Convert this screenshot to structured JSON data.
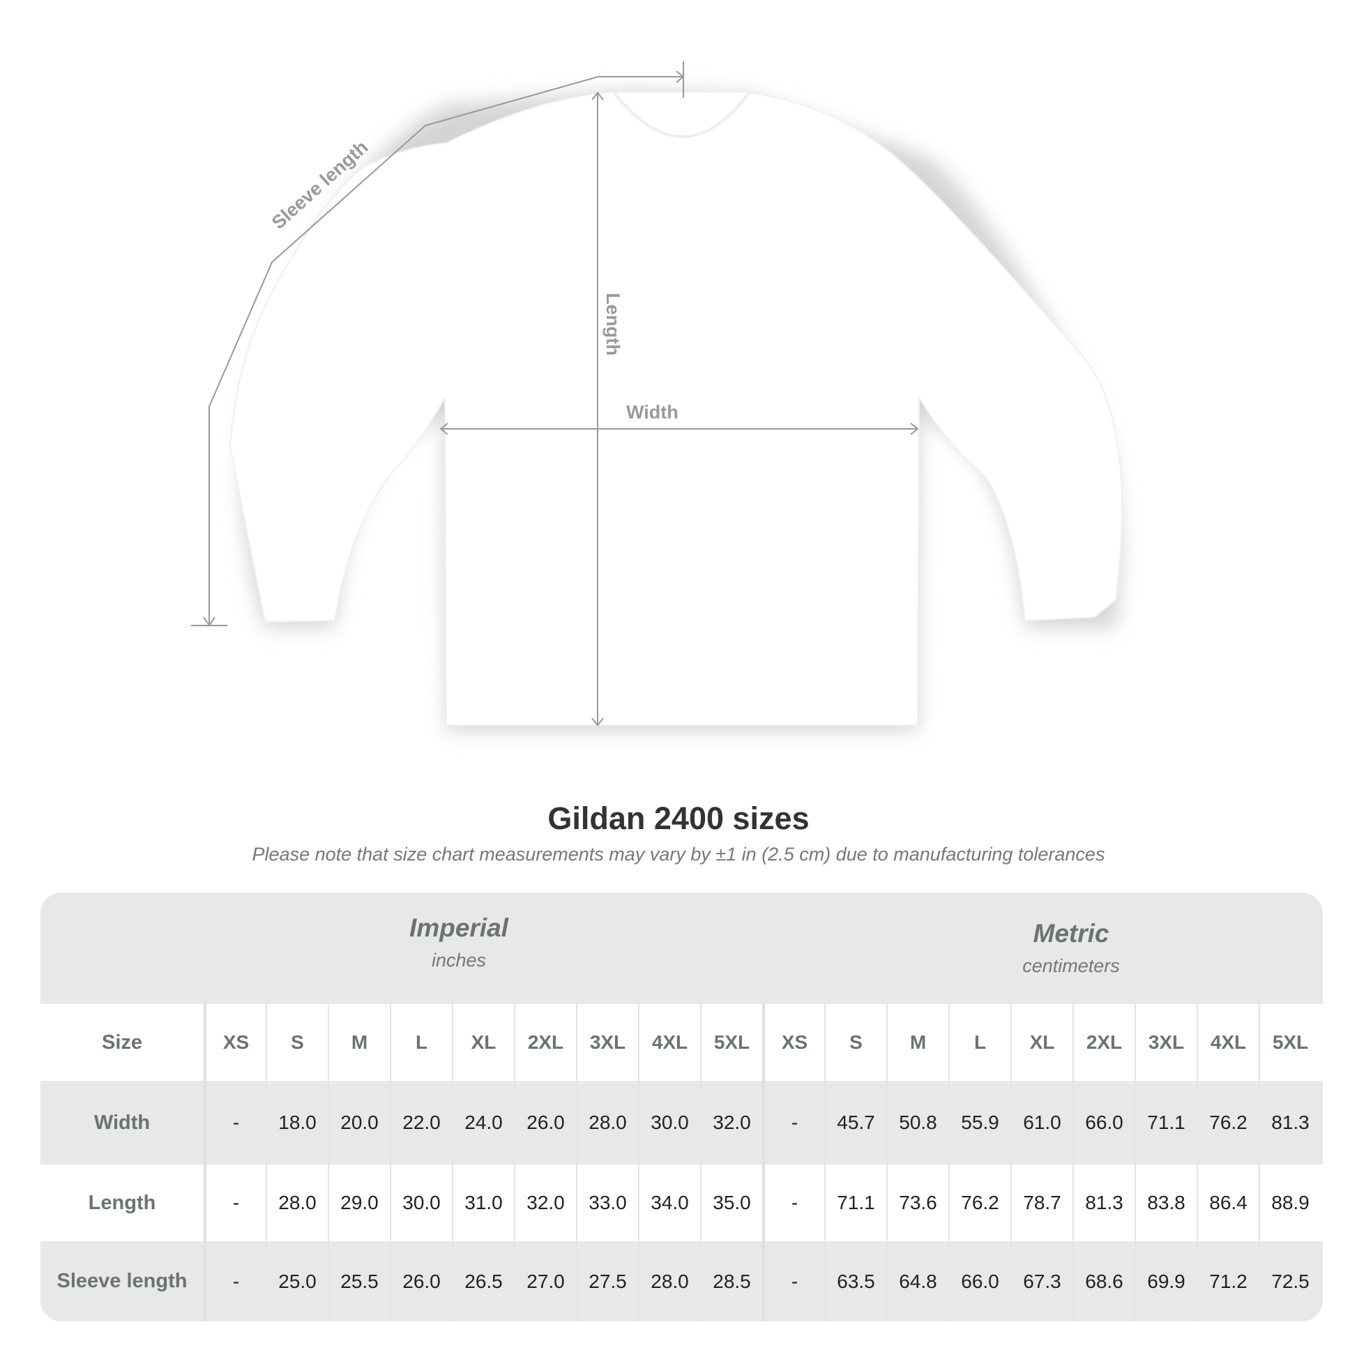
{
  "diagram": {
    "sleeve_label": "Sleeve length",
    "length_label": "Length",
    "width_label": "Width"
  },
  "title": "Gildan 2400 sizes",
  "subtitle": "Please note that size chart measurements may vary by ±1 in (2.5 cm) due to manufacturing tolerances",
  "imperial": {
    "name": "Imperial",
    "unit": "inches"
  },
  "metric": {
    "name": "Metric",
    "unit": "centimeters"
  },
  "table": {
    "size_label": "Size",
    "sizes": [
      "XS",
      "S",
      "M",
      "L",
      "XL",
      "2XL",
      "3XL",
      "4XL",
      "5XL",
      "XS",
      "S",
      "M",
      "L",
      "XL",
      "2XL",
      "3XL",
      "4XL",
      "5XL"
    ],
    "rows": [
      {
        "label": "Width",
        "values": [
          "-",
          "18.0",
          "20.0",
          "22.0",
          "24.0",
          "26.0",
          "28.0",
          "30.0",
          "32.0",
          "-",
          "45.7",
          "50.8",
          "55.9",
          "61.0",
          "66.0",
          "71.1",
          "76.2",
          "81.3"
        ]
      },
      {
        "label": "Length",
        "values": [
          "-",
          "28.0",
          "29.0",
          "30.0",
          "31.0",
          "32.0",
          "33.0",
          "34.0",
          "35.0",
          "-",
          "71.1",
          "73.6",
          "76.2",
          "78.7",
          "81.3",
          "83.8",
          "86.4",
          "88.9"
        ]
      },
      {
        "label": "Sleeve length",
        "values": [
          "-",
          "25.0",
          "25.5",
          "26.0",
          "26.5",
          "27.0",
          "27.5",
          "28.0",
          "28.5",
          "-",
          "63.5",
          "64.8",
          "66.0",
          "67.3",
          "68.6",
          "69.9",
          "71.2",
          "72.5"
        ]
      }
    ]
  }
}
